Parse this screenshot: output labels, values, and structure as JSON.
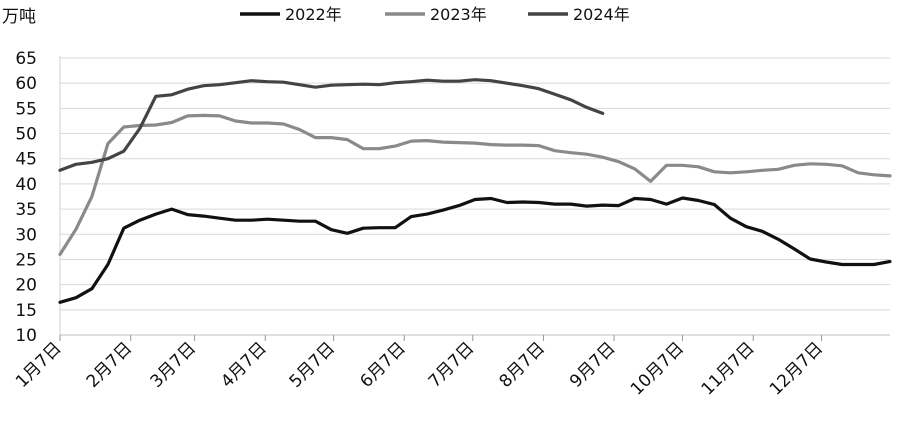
{
  "chart_data": {
    "type": "line",
    "ylabel": "万吨",
    "ylim": [
      10,
      65
    ],
    "yticks": [
      10,
      15,
      20,
      25,
      30,
      35,
      40,
      45,
      50,
      55,
      60,
      65
    ],
    "x_range": [
      1,
      53
    ],
    "x_ticks": [
      {
        "label": "1月7日",
        "x": 1
      },
      {
        "label": "2月7日",
        "x": 5.43
      },
      {
        "label": "3月7日",
        "x": 9.43
      },
      {
        "label": "4月7日",
        "x": 13.86
      },
      {
        "label": "5月7日",
        "x": 18.14
      },
      {
        "label": "6月7日",
        "x": 22.57
      },
      {
        "label": "7月7日",
        "x": 26.86
      },
      {
        "label": "8月7日",
        "x": 31.29
      },
      {
        "label": "9月7日",
        "x": 35.71
      },
      {
        "label": "10月7日",
        "x": 40
      },
      {
        "label": "11月7日",
        "x": 44.43
      },
      {
        "label": "12月7日",
        "x": 48.71
      }
    ],
    "legend_position": "top",
    "grid": "horizontal",
    "series": [
      {
        "name": "2022年",
        "color": "#111111",
        "x": [
          1,
          2,
          3,
          4,
          5,
          6,
          7,
          8,
          9,
          10,
          11,
          12,
          13,
          14,
          15,
          16,
          17,
          18,
          19,
          20,
          21,
          22,
          23,
          24,
          25,
          26,
          27,
          28,
          29,
          30,
          31,
          32,
          33,
          34,
          35,
          36,
          37,
          38,
          39,
          40,
          41,
          42,
          43,
          44,
          45,
          46,
          47,
          48,
          49,
          50,
          51,
          52,
          53
        ],
        "y": [
          16.5,
          17.4,
          19.2,
          24.0,
          31.2,
          32.8,
          34.0,
          35.0,
          33.9,
          33.6,
          33.2,
          32.8,
          32.8,
          33.0,
          32.8,
          32.6,
          32.6,
          30.9,
          30.2,
          31.2,
          31.3,
          31.3,
          33.5,
          34.0,
          34.8,
          35.7,
          36.9,
          37.1,
          36.3,
          36.4,
          36.3,
          36.0,
          36.0,
          35.6,
          35.8,
          35.7,
          37.1,
          36.9,
          36.0,
          37.2,
          36.7,
          35.9,
          33.2,
          31.5,
          30.6,
          29.0,
          27.1,
          25.1,
          24.5,
          24.0,
          24.0,
          24.0,
          24.6
        ]
      },
      {
        "name": "2023年",
        "color": "#8a8a8a",
        "x": [
          1,
          2,
          3,
          4,
          5,
          6,
          7,
          8,
          9,
          10,
          11,
          12,
          13,
          14,
          15,
          16,
          17,
          18,
          19,
          20,
          21,
          22,
          23,
          24,
          25,
          26,
          27,
          28,
          29,
          30,
          31,
          32,
          33,
          34,
          35,
          36,
          37,
          38,
          39,
          40,
          41,
          42,
          43,
          44,
          45,
          46,
          47,
          48,
          49,
          50,
          51,
          52,
          53
        ],
        "y": [
          26.0,
          31.0,
          37.5,
          48.0,
          51.3,
          51.6,
          51.7,
          52.2,
          53.5,
          53.6,
          53.5,
          52.5,
          52.1,
          52.1,
          51.9,
          50.8,
          49.2,
          49.2,
          48.8,
          47.0,
          47.0,
          47.5,
          48.5,
          48.6,
          48.3,
          48.2,
          48.1,
          47.8,
          47.7,
          47.7,
          47.6,
          46.6,
          46.2,
          45.9,
          45.3,
          44.4,
          43.0,
          40.5,
          43.7,
          43.7,
          43.4,
          42.4,
          42.2,
          42.4,
          42.7,
          42.9,
          43.7,
          44.0,
          43.9,
          43.6,
          42.2,
          41.8,
          41.6
        ]
      },
      {
        "name": "2024年",
        "color": "#444444",
        "x": [
          1,
          2,
          3,
          4,
          5,
          6,
          7,
          8,
          9,
          10,
          11,
          12,
          13,
          14,
          15,
          16,
          17,
          18,
          19,
          20,
          21,
          22,
          23,
          24,
          25,
          26,
          27,
          28,
          29,
          30,
          31,
          32,
          33,
          34,
          35,
          36
        ],
        "y": [
          42.7,
          43.9,
          44.3,
          45.0,
          46.5,
          51.0,
          57.4,
          57.7,
          58.8,
          59.5,
          59.7,
          60.1,
          60.5,
          60.3,
          60.2,
          59.7,
          59.2,
          59.6,
          59.7,
          59.8,
          59.7,
          60.1,
          60.3,
          60.6,
          60.4,
          60.4,
          60.7,
          60.5,
          60.0,
          59.5,
          58.9,
          57.8,
          56.7,
          55.2,
          54.0,
          null
        ]
      }
    ]
  }
}
